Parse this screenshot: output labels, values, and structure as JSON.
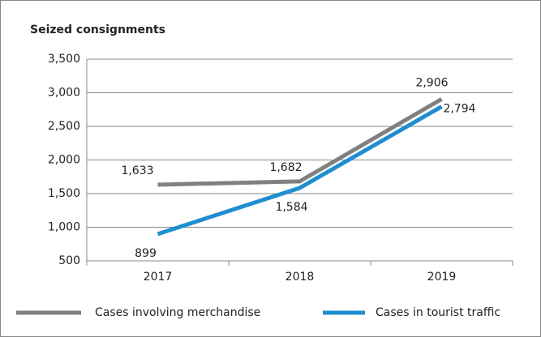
{
  "chart_data": {
    "type": "line",
    "title": "Seized consignments",
    "categories": [
      "2017",
      "2018",
      "2019"
    ],
    "series": [
      {
        "name": "Cases involving merchandise",
        "color": "#808080",
        "values": [
          1633,
          1682,
          2906
        ],
        "value_labels": [
          "1,633",
          "1,682",
          "2,906"
        ]
      },
      {
        "name": "Cases in tourist traffic",
        "color": "#1f8ed0",
        "values": [
          899,
          1584,
          2794
        ],
        "value_labels": [
          "899",
          "1,584",
          "2,794"
        ]
      }
    ],
    "ylim": [
      500,
      3500
    ],
    "yticks": [
      500,
      {
        "value": 1000,
        "label": "1,000"
      },
      {
        "value": 1500,
        "label": "1,500"
      },
      {
        "value": 2000,
        "label": "2,000"
      },
      {
        "value": 2500,
        "label": "2,500"
      },
      {
        "value": 3000,
        "label": "3,000"
      },
      {
        "value": 3500,
        "label": "3,500"
      }
    ],
    "grid": true,
    "legend": "bottom"
  }
}
